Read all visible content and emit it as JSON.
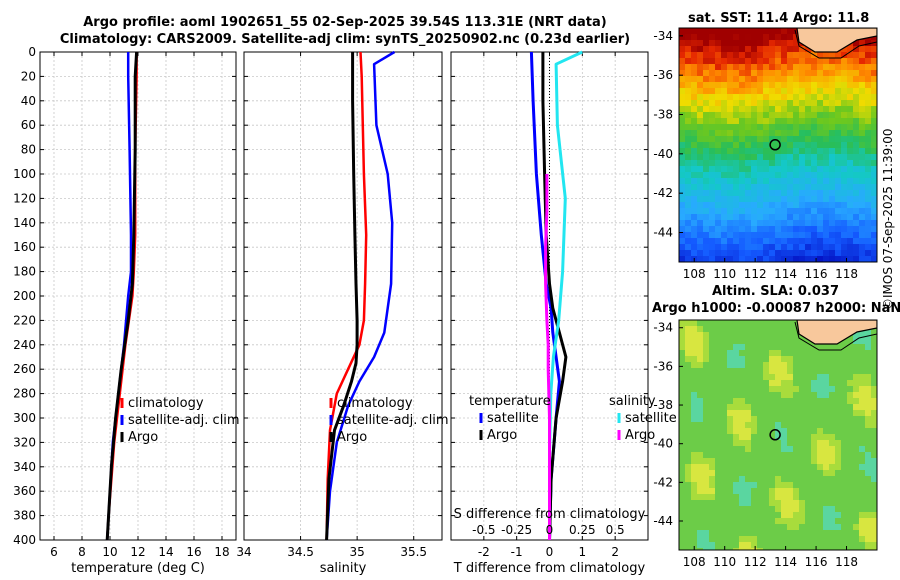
{
  "title": {
    "line1": "Argo profile: aoml 1902651_55 02-Sep-2025 39.54S 113.31E (NRT data)",
    "line2": "Climatology: CARS2009. Satellite-adj clim: synTS_20250902.nc (0.23d earlier)"
  },
  "colors": {
    "climatology": "#ff0000",
    "satellite": "#0000ff",
    "argo": "#000000",
    "sat_s": "#22e6f0",
    "argo_diff": "#ff00ff"
  },
  "chart_data": [
    {
      "type": "line",
      "name": "temperature-profile",
      "xlabel": "temperature (deg C)",
      "ylabel": "depth",
      "xlim": [
        5,
        19
      ],
      "ylim": [
        0,
        400
      ],
      "y_reversed": true,
      "xticks": [
        6,
        8,
        10,
        12,
        14,
        16,
        18
      ],
      "yticks": [
        0,
        20,
        40,
        60,
        80,
        100,
        120,
        140,
        160,
        180,
        200,
        220,
        240,
        260,
        280,
        300,
        320,
        340,
        360,
        380,
        400
      ],
      "series": [
        {
          "name": "climatology",
          "color": "#ff0000",
          "x": [
            11.9,
            11.9,
            11.8,
            11.8,
            11.7,
            11.6,
            11.1,
            10.7,
            10.3,
            9.9,
            9.8
          ],
          "y": [
            0,
            20,
            80,
            150,
            180,
            200,
            240,
            280,
            320,
            380,
            400
          ]
        },
        {
          "name": "satellite-adj. clim",
          "color": "#0000ff",
          "x": [
            11.3,
            11.3,
            11.4,
            11.5,
            11.5,
            11.3,
            11.0,
            10.6,
            10.2,
            9.9,
            9.8
          ],
          "y": [
            0,
            20,
            80,
            150,
            180,
            200,
            240,
            280,
            320,
            380,
            400
          ]
        },
        {
          "name": "Argo",
          "color": "#000000",
          "x": [
            11.9,
            11.8,
            11.8,
            11.7,
            11.6,
            11.3,
            10.8,
            10.4,
            10.1,
            9.9,
            9.8
          ],
          "y": [
            0,
            20,
            80,
            150,
            190,
            220,
            260,
            300,
            340,
            380,
            400
          ]
        }
      ],
      "legend": [
        "climatology",
        "satellite-adj. clim",
        "Argo"
      ]
    },
    {
      "type": "line",
      "name": "salinity-profile",
      "xlabel": "salinity",
      "ylabel": "depth",
      "xlim": [
        34,
        35.75
      ],
      "ylim": [
        0,
        400
      ],
      "y_reversed": true,
      "xticks": [
        34,
        34.5,
        35,
        35.5
      ],
      "xticklabels": [
        "34",
        "34.5",
        "35",
        "35.5"
      ],
      "series": [
        {
          "name": "climatology",
          "color": "#ff0000",
          "x": [
            35.03,
            35.04,
            35.05,
            35.06,
            35.08,
            35.07,
            35.06,
            35.02,
            34.92,
            34.82,
            34.76,
            34.74,
            34.73
          ],
          "y": [
            0,
            20,
            60,
            100,
            150,
            190,
            220,
            240,
            260,
            280,
            310,
            350,
            400
          ]
        },
        {
          "name": "satellite-adj. clim",
          "color": "#0000ff",
          "x": [
            35.33,
            35.15,
            35.17,
            35.27,
            35.31,
            35.3,
            35.24,
            35.15,
            35.02,
            34.92,
            34.82,
            34.76,
            34.73
          ],
          "y": [
            0,
            10,
            60,
            100,
            140,
            190,
            230,
            250,
            270,
            290,
            320,
            360,
            400
          ]
        },
        {
          "name": "Argo",
          "color": "#000000",
          "x": [
            34.96,
            34.96,
            34.97,
            34.98,
            34.99,
            35.0,
            35.0,
            34.99,
            34.95,
            34.88,
            34.8,
            34.75,
            34.73
          ],
          "y": [
            0,
            40,
            100,
            150,
            190,
            220,
            240,
            255,
            270,
            290,
            310,
            350,
            400
          ]
        }
      ],
      "legend": [
        "climatology",
        "satellite-adj. clim",
        "Argo"
      ]
    },
    {
      "type": "line",
      "name": "difference-profile",
      "xlabel": "T difference from climatology",
      "x2label": "S difference from climatology",
      "xlim": [
        -3,
        3
      ],
      "ylim": [
        0,
        400
      ],
      "y_reversed": true,
      "xticks": [
        -2,
        -1,
        0,
        1,
        2
      ],
      "x2ticks": [
        -0.5,
        -0.25,
        0,
        0.25,
        0.5
      ],
      "x2ticklabels": [
        "-0.5",
        "-0.25",
        "0",
        "0.25",
        "0.5"
      ],
      "x2lim": [
        -0.75,
        0.75
      ],
      "series": [
        {
          "name": "temperature satellite",
          "axis": "T",
          "color": "#0000ff",
          "x": [
            -0.55,
            -0.5,
            -0.4,
            -0.25,
            -0.1,
            0.05,
            0.1,
            0.2,
            0.3,
            0.2,
            0.05,
            0.0
          ],
          "y": [
            0,
            40,
            100,
            150,
            190,
            210,
            230,
            250,
            270,
            300,
            350,
            400
          ]
        },
        {
          "name": "temperature Argo",
          "axis": "T",
          "color": "#000000",
          "x": [
            -0.2,
            -0.2,
            -0.15,
            -0.1,
            0.0,
            0.1,
            0.3,
            0.5,
            0.4,
            0.2,
            0.05,
            0.0
          ],
          "y": [
            0,
            40,
            100,
            150,
            190,
            210,
            230,
            250,
            270,
            300,
            350,
            400
          ]
        },
        {
          "name": "salinity satellite",
          "axis": "S",
          "color": "#22e6f0",
          "x": [
            0.25,
            0.05,
            0.06,
            0.12,
            0.1,
            0.07,
            0.03,
            0.01,
            0.0,
            0.0
          ],
          "y": [
            0,
            10,
            60,
            120,
            180,
            220,
            250,
            280,
            330,
            400
          ]
        },
        {
          "name": "salinity Argo",
          "axis": "S",
          "color": "#ff00ff",
          "x": [
            -0.02,
            -0.02,
            -0.03,
            -0.03,
            -0.02,
            -0.01,
            -0.01,
            0.0,
            0.0
          ],
          "y": [
            100,
            130,
            160,
            190,
            220,
            240,
            260,
            300,
            400
          ]
        }
      ],
      "legend_headers": [
        "temperature",
        "salinity"
      ],
      "legend": [
        "satellite",
        "Argo",
        "satellite",
        "Argo"
      ]
    },
    {
      "type": "heatmap",
      "name": "sst-map",
      "title": "sat. SST: 11.4 Argo: 11.8",
      "xticks": [
        108,
        110,
        112,
        114,
        116,
        118
      ],
      "yticks": [
        -34,
        -36,
        -38,
        -40,
        -42,
        -44
      ],
      "xlim": [
        107,
        120
      ],
      "ylim": [
        -45.5,
        -33.6
      ],
      "marker": {
        "lon": 113.31,
        "lat": -39.54
      }
    },
    {
      "type": "heatmap",
      "name": "sla-map",
      "title_line1": "Altim. SLA: 0.037",
      "title_line2": "Argo h1000: -0.00087 h2000: NaN",
      "xticks": [
        108,
        110,
        112,
        114,
        116,
        118
      ],
      "yticks": [
        -34,
        -36,
        -38,
        -40,
        -42,
        -44
      ],
      "xlim": [
        107,
        120
      ],
      "ylim": [
        -45.5,
        -33.6
      ],
      "marker": {
        "lon": 113.31,
        "lat": -39.54
      }
    }
  ],
  "credit": "©IMOS 07-Sep-2025 11:39:00"
}
